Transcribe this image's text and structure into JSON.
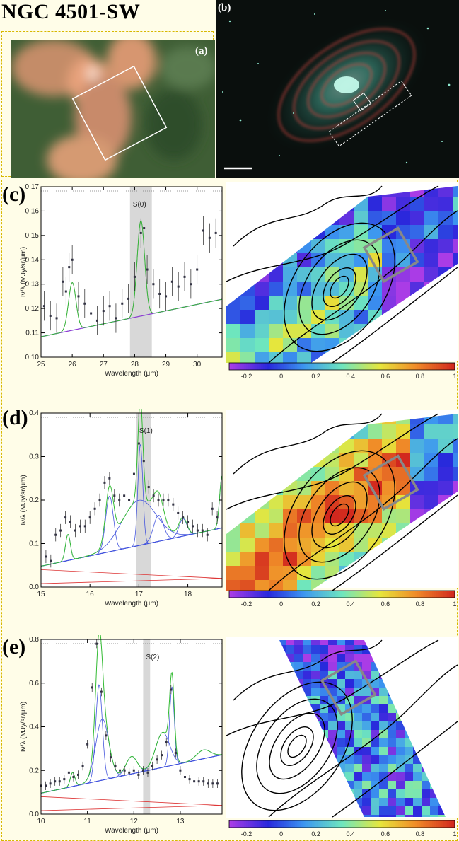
{
  "figure": {
    "title": "NGC 4501-SW",
    "image_a_label": "(a)",
    "image_b_label": "(b)",
    "colors": {
      "continuum": "#4455dd",
      "fit": "#33bb33",
      "h2_line": "#aa33cc",
      "stellar": "#dd3333",
      "box": "#888888"
    }
  },
  "panels": [
    {
      "letter": "(c)",
      "line_label": "S(0)",
      "xlabel": "Wavelength (μm)",
      "ylabel": "Iν/λ (MJy/sr/μm)",
      "x_ticks": [
        "25",
        "26",
        "27",
        "28",
        "29",
        "30"
      ],
      "y_ticks": [
        "0.10",
        "0.11",
        "0.12",
        "0.13",
        "0.14",
        "0.15",
        "0.16",
        "0.17"
      ],
      "colorbar_ticks": [
        "-0.2",
        "0",
        "0.2",
        "0.4",
        "0.6",
        "0.8",
        "1"
      ]
    },
    {
      "letter": "(d)",
      "line_label": "S(1)",
      "xlabel": "Wavelength (μm)",
      "ylabel": "Iν/λ (MJy/sr/μm)",
      "x_ticks": [
        "15",
        "16",
        "17",
        "18"
      ],
      "y_ticks": [
        "0.0",
        "0.1",
        "0.2",
        "0.3",
        "0.4"
      ],
      "colorbar_ticks": [
        "-0.2",
        "0",
        "0.2",
        "0.4",
        "0.6",
        "0.8",
        "1"
      ]
    },
    {
      "letter": "(e)",
      "line_label": "S(2)",
      "xlabel": "Wavelength (μm)",
      "ylabel": "Iν/λ (MJy/sr/μm)",
      "x_ticks": [
        "10",
        "11",
        "12",
        "13"
      ],
      "y_ticks": [
        "0.0",
        "0.2",
        "0.4",
        "0.6",
        "0.8"
      ],
      "colorbar_ticks": [
        "-0.2",
        "0",
        "0.2",
        "0.4",
        "0.6",
        "0.8",
        "1"
      ]
    }
  ],
  "chart_data": [
    {
      "type": "scatter",
      "title": "S(0)",
      "xlabel": "Wavelength (μm)",
      "ylabel": "Iν/λ (MJy/sr/μm)",
      "xlim": [
        25,
        30.8
      ],
      "ylim": [
        0.1,
        0.17
      ],
      "highlight": [
        27.85,
        28.55
      ],
      "x": [
        25.1,
        25.3,
        25.5,
        25.7,
        25.8,
        25.9,
        26.0,
        26.2,
        26.4,
        26.6,
        26.8,
        27.0,
        27.2,
        27.4,
        27.6,
        27.8,
        28.0,
        28.2,
        28.3,
        28.4,
        28.6,
        28.8,
        29.0,
        29.2,
        29.4,
        29.6,
        29.8,
        30.0,
        30.2,
        30.4,
        30.6
      ],
      "y": [
        0.121,
        0.117,
        0.116,
        0.131,
        0.127,
        0.137,
        0.14,
        0.125,
        0.122,
        0.118,
        0.115,
        0.119,
        0.121,
        0.116,
        0.122,
        0.124,
        0.133,
        0.151,
        0.153,
        0.136,
        0.13,
        0.126,
        0.125,
        0.131,
        0.129,
        0.133,
        0.13,
        0.136,
        0.152,
        0.149,
        0.151
      ]
    },
    {
      "type": "scatter",
      "title": "S(1)",
      "xlabel": "Wavelength (μm)",
      "ylabel": "Iν/λ (MJy/sr/μm)",
      "xlim": [
        15,
        18.7
      ],
      "ylim": [
        0.0,
        0.4
      ],
      "highlight": [
        16.95,
        17.25
      ],
      "x": [
        15.1,
        15.2,
        15.3,
        15.4,
        15.5,
        15.6,
        15.7,
        15.8,
        15.9,
        16.0,
        16.1,
        16.2,
        16.3,
        16.4,
        16.5,
        16.6,
        16.7,
        16.8,
        16.9,
        17.0,
        17.1,
        17.2,
        17.3,
        17.4,
        17.5,
        17.6,
        17.7,
        17.8,
        17.9,
        18.0,
        18.1,
        18.2,
        18.3,
        18.4,
        18.5,
        18.6
      ],
      "y": [
        0.07,
        0.06,
        0.12,
        0.13,
        0.16,
        0.15,
        0.13,
        0.14,
        0.14,
        0.16,
        0.18,
        0.2,
        0.24,
        0.25,
        0.21,
        0.2,
        0.21,
        0.2,
        0.26,
        0.33,
        0.29,
        0.23,
        0.21,
        0.2,
        0.2,
        0.2,
        0.19,
        0.17,
        0.16,
        0.15,
        0.14,
        0.13,
        0.13,
        0.12,
        0.18,
        0.16
      ]
    },
    {
      "type": "scatter",
      "title": "S(2)",
      "xlabel": "Wavelength (μm)",
      "ylabel": "Iν/λ (MJy/sr/μm)",
      "xlim": [
        10,
        13.9
      ],
      "ylim": [
        0.0,
        0.8
      ],
      "highlight": [
        12.2,
        12.35
      ],
      "x": [
        10.0,
        10.1,
        10.2,
        10.3,
        10.4,
        10.5,
        10.6,
        10.7,
        10.8,
        10.9,
        11.0,
        11.1,
        11.2,
        11.3,
        11.4,
        11.5,
        11.6,
        11.7,
        11.8,
        11.9,
        12.0,
        12.1,
        12.2,
        12.3,
        12.4,
        12.5,
        12.6,
        12.7,
        12.8,
        12.9,
        13.0,
        13.1,
        13.2,
        13.3,
        13.4,
        13.5,
        13.6,
        13.7,
        13.8
      ],
      "y": [
        0.13,
        0.13,
        0.14,
        0.15,
        0.15,
        0.16,
        0.19,
        0.17,
        0.18,
        0.22,
        0.32,
        0.58,
        0.78,
        0.56,
        0.36,
        0.26,
        0.22,
        0.2,
        0.2,
        0.19,
        0.2,
        0.18,
        0.2,
        0.19,
        0.22,
        0.25,
        0.27,
        0.33,
        0.57,
        0.28,
        0.2,
        0.17,
        0.16,
        0.15,
        0.15,
        0.15,
        0.14,
        0.14,
        0.14
      ]
    }
  ]
}
